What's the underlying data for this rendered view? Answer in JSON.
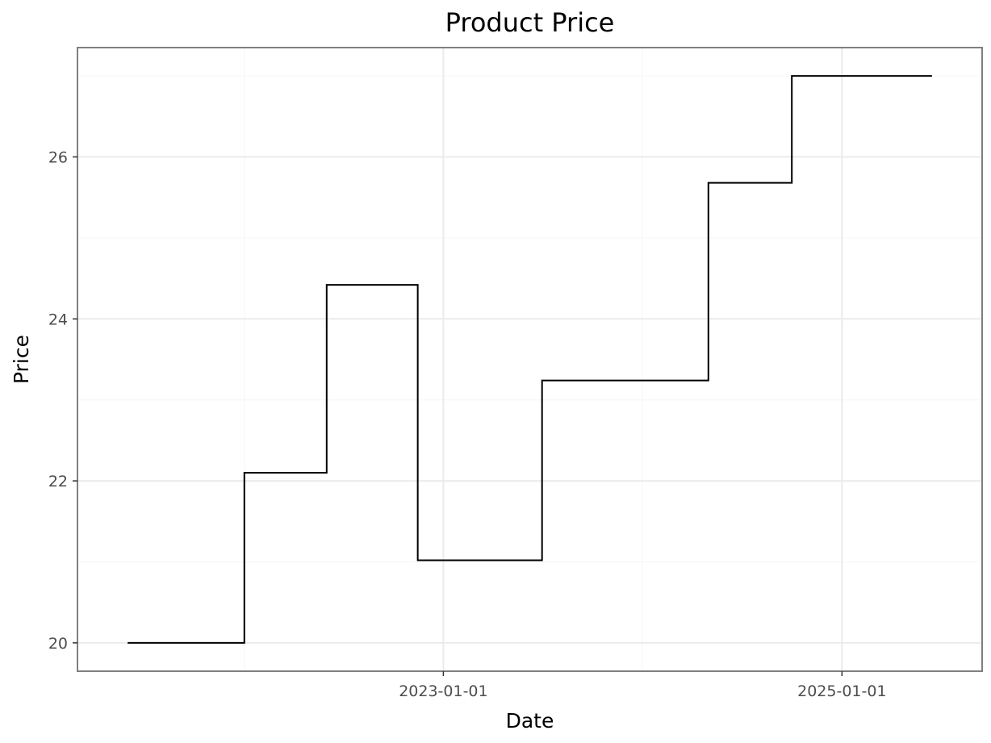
{
  "chart_data": {
    "type": "line",
    "step": true,
    "title": "Product Price",
    "xlabel": "Date",
    "ylabel": "Price",
    "x_axis_type": "date",
    "xlim": [
      "2021-03-01",
      "2025-09-15"
    ],
    "ylim": [
      19.65,
      27.35
    ],
    "x_ticks": [
      "2023-01-01",
      "2025-01-01"
    ],
    "x_minor_ticks": [
      "2022-01-01",
      "2024-01-01"
    ],
    "y_ticks": [
      20,
      22,
      24,
      26
    ],
    "y_tick_labels": [
      "20",
      "22",
      "24",
      "26"
    ],
    "y_minor_ticks": [
      21,
      23,
      25,
      27
    ],
    "grid": true,
    "legend": "none",
    "series": [
      {
        "x": [
          "2021-06-01",
          "2022-01-01",
          "2022-06-01",
          "2022-11-15",
          "2023-07-01",
          "2024-05-01",
          "2024-10-01",
          "2025-06-15"
        ],
        "y": [
          20.0,
          22.1,
          24.42,
          21.02,
          23.24,
          25.68,
          27.0,
          27.0
        ],
        "color": "#000000"
      }
    ]
  }
}
